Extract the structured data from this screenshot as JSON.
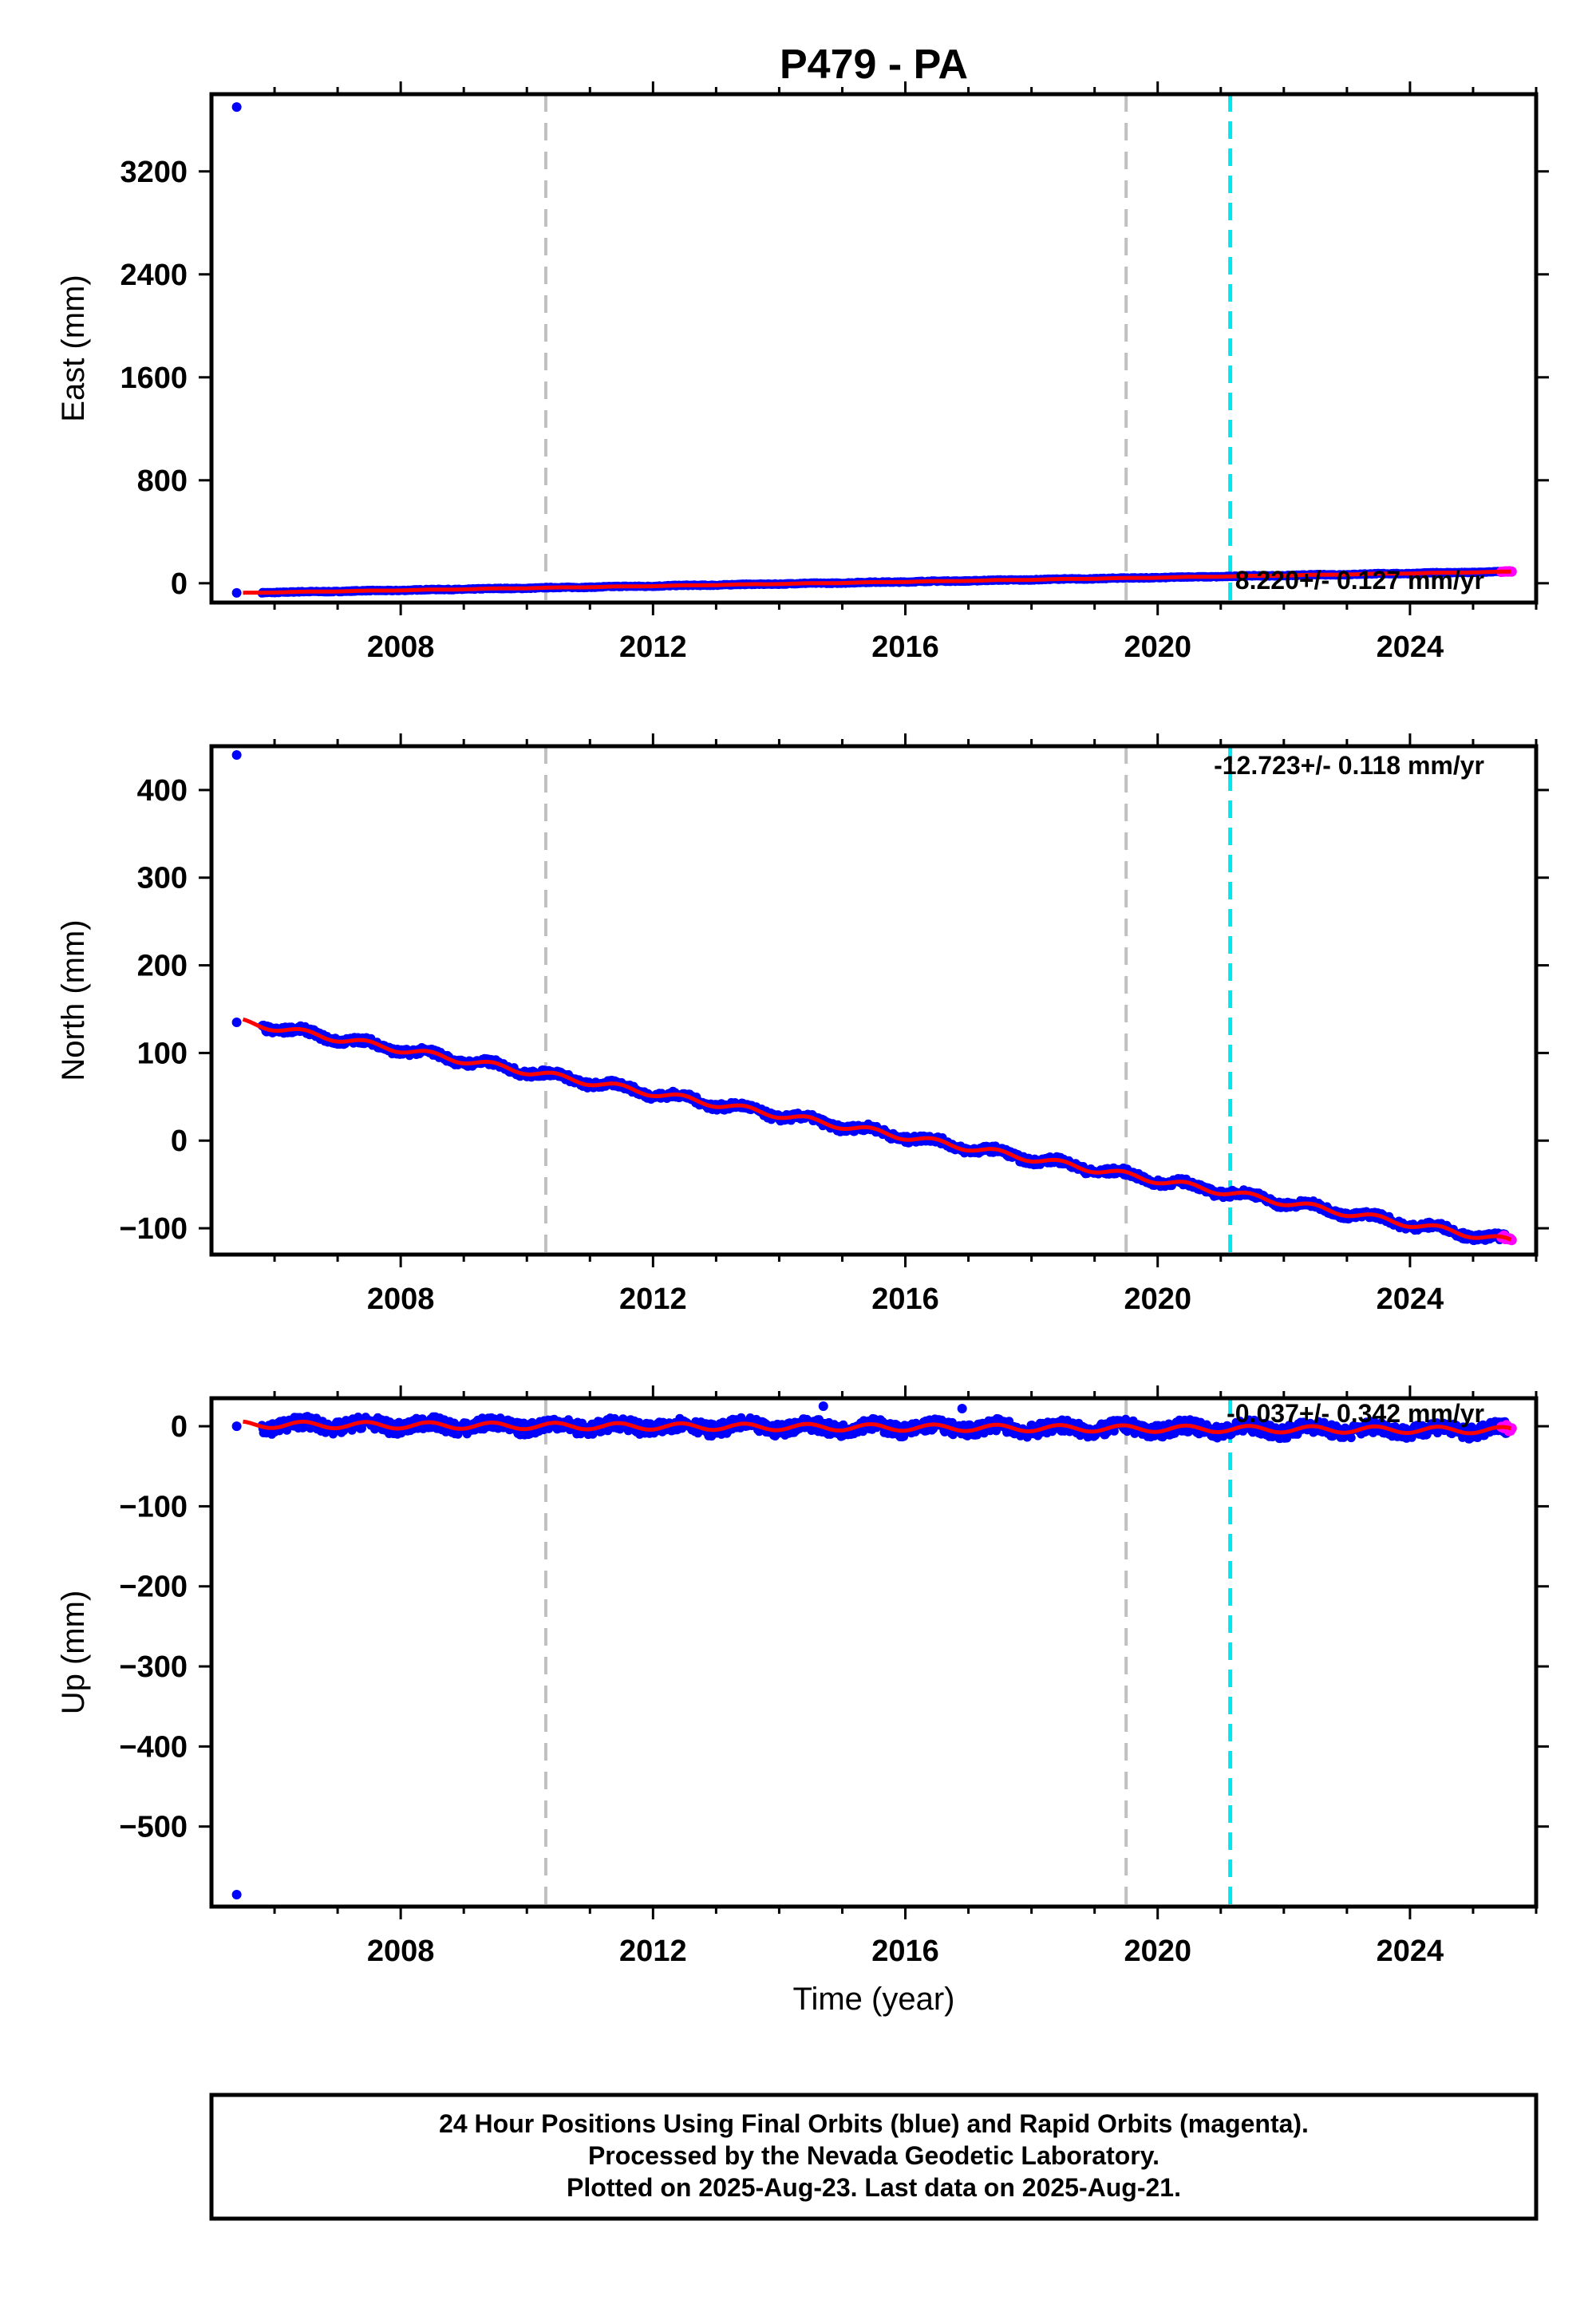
{
  "title": "P479 - PA",
  "colors": {
    "final_orbits": "#0000ff",
    "rapid_orbits": "#ff00ff",
    "model": "#ff0000",
    "event_gray": "#c0c0c0",
    "event_cyan": "#00e5ee"
  },
  "chart_data": [
    {
      "type": "scatter",
      "component": "east",
      "ylabel": "East (mm)",
      "xlim": [
        2005.0,
        2026.0
      ],
      "ylim": [
        -150,
        3800
      ],
      "yticks": [
        0,
        800,
        1600,
        2400,
        3200
      ],
      "xticks": [
        2008,
        2012,
        2016,
        2020,
        2024
      ],
      "rate_text": "8.220+/- 0.127 mm/yr",
      "rate_mm_per_yr": 8.22,
      "start_value": -75,
      "end_value": 90,
      "outliers": [
        {
          "x": 2005.4,
          "y": 3700
        },
        {
          "x": 2005.4,
          "y": -75
        }
      ],
      "event_lines_gray": [
        2010.3,
        2019.5
      ],
      "event_lines_cyan": [
        2021.15
      ]
    },
    {
      "type": "scatter",
      "component": "north",
      "ylabel": "North (mm)",
      "xlim": [
        2005.0,
        2026.0
      ],
      "ylim": [
        -130,
        450
      ],
      "yticks": [
        -100,
        0,
        100,
        200,
        300,
        400
      ],
      "xticks": [
        2008,
        2012,
        2016,
        2020,
        2024
      ],
      "rate_text": "-12.723+/- 0.118 mm/yr",
      "rate_mm_per_yr": -12.723,
      "start_value": 135,
      "end_value": -115,
      "outliers": [
        {
          "x": 2005.4,
          "y": 440
        },
        {
          "x": 2005.4,
          "y": 135
        }
      ],
      "event_lines_gray": [
        2010.3,
        2019.5
      ],
      "event_lines_cyan": [
        2021.15
      ]
    },
    {
      "type": "scatter",
      "component": "up",
      "ylabel": "Up (mm)",
      "xlabel": "Time (year)",
      "xlim": [
        2005.0,
        2026.0
      ],
      "ylim": [
        -600,
        35
      ],
      "yticks": [
        -500,
        -400,
        -300,
        -200,
        -100,
        0
      ],
      "xticks": [
        2008,
        2012,
        2016,
        2020,
        2024
      ],
      "rate_text": "-0.037+/- 0.342 mm/yr",
      "rate_mm_per_yr": -0.037,
      "start_value": 2,
      "end_value": -5,
      "outliers": [
        {
          "x": 2005.4,
          "y": -585
        },
        {
          "x": 2005.4,
          "y": 0
        },
        {
          "x": 2014.7,
          "y": 25
        },
        {
          "x": 2016.9,
          "y": 22
        }
      ],
      "event_lines_gray": [
        2010.3,
        2019.5
      ],
      "event_lines_cyan": [
        2021.15
      ]
    }
  ],
  "footer": {
    "line1": "24 Hour Positions Using Final Orbits (blue) and Rapid Orbits (magenta).",
    "line2": "Processed by the Nevada Geodetic Laboratory.",
    "line3": "Plotted on 2025-Aug-23. Last data on 2025-Aug-21."
  }
}
